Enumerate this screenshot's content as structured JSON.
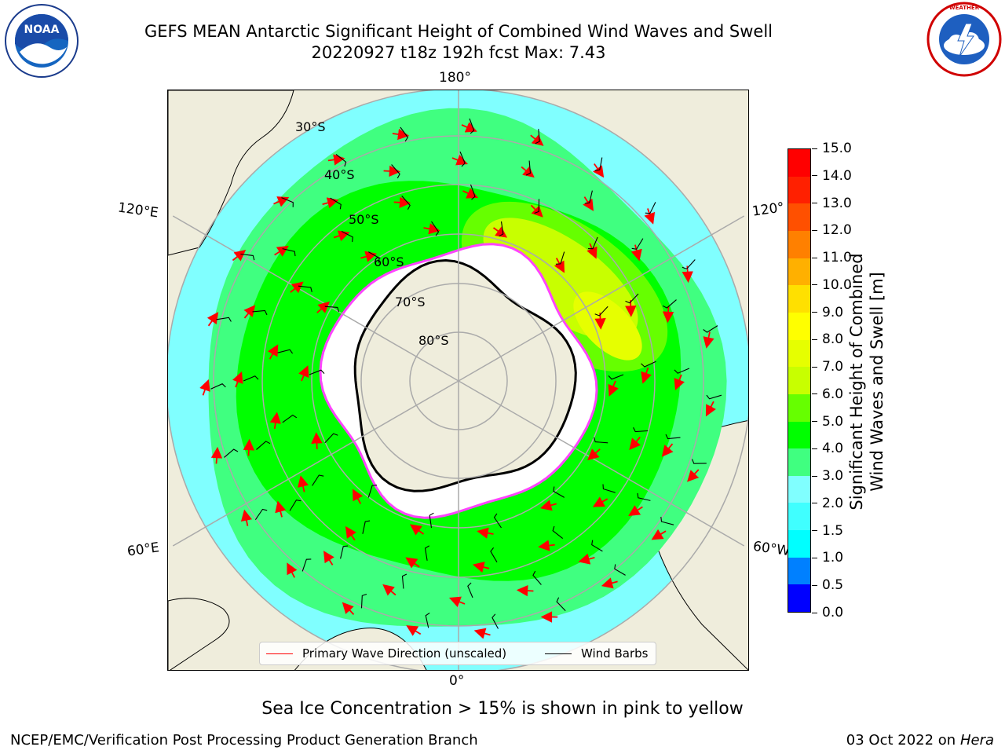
{
  "header": {
    "title_line1": "GEFS MEAN Antarctic Significant Height of Combined Wind Waves and Swell",
    "title_line2": "20220927 t18z 192h fcst   Max: 7.43"
  },
  "logos": {
    "left": "NOAA",
    "right": "NATIONAL WEATHER SERVICE"
  },
  "map": {
    "projection": "south-polar-stereographic",
    "lon_labels": {
      "top": "180°",
      "bottom": "0°",
      "left_upper": "120°E",
      "left_lower": "60°E",
      "right_upper": "120°",
      "right_lower": "60°W"
    },
    "lat_labels": [
      "30°S",
      "40°S",
      "50°S",
      "60°S",
      "70°S",
      "80°S"
    ],
    "colors": {
      "land": "#efeddc",
      "ice": "#ffffff",
      "ice_edge": "#ff44ff",
      "ocean_low": "#80ffff",
      "arrow": "#ff0000",
      "barb": "#000000"
    }
  },
  "legend": {
    "wave_label": "Primary Wave Direction (unscaled)",
    "wave_color": "#ff0000",
    "barb_label": "Wind Barbs",
    "barb_color": "#000000"
  },
  "colorbar": {
    "label_line1": "Significant Height of Combined",
    "label_line2": "Wind Waves and Swell [m]",
    "ticks": [
      "0.0",
      "0.5",
      "1.0",
      "1.5",
      "2.0",
      "3.0",
      "4.0",
      "5.0",
      "6.0",
      "7.0",
      "8.0",
      "9.0",
      "10.0",
      "11.0",
      "12.0",
      "13.0",
      "14.0",
      "15.0"
    ],
    "colors": [
      "#0000ff",
      "#0080ff",
      "#00ffff",
      "#40ffff",
      "#80ffff",
      "#40ff80",
      "#00ff00",
      "#66ff00",
      "#c8ff00",
      "#e6ff00",
      "#ffff00",
      "#ffe000",
      "#ffb000",
      "#ff8000",
      "#ff5000",
      "#ff2000",
      "#ff0000"
    ]
  },
  "caption": "Sea Ice Concentration > 15% is shown in pink to yellow",
  "footer": {
    "left": "NCEP/EMC/Verification Post Processing Product Generation Branch",
    "date": "03 Oct 2022 on ",
    "machine": "Hera"
  }
}
